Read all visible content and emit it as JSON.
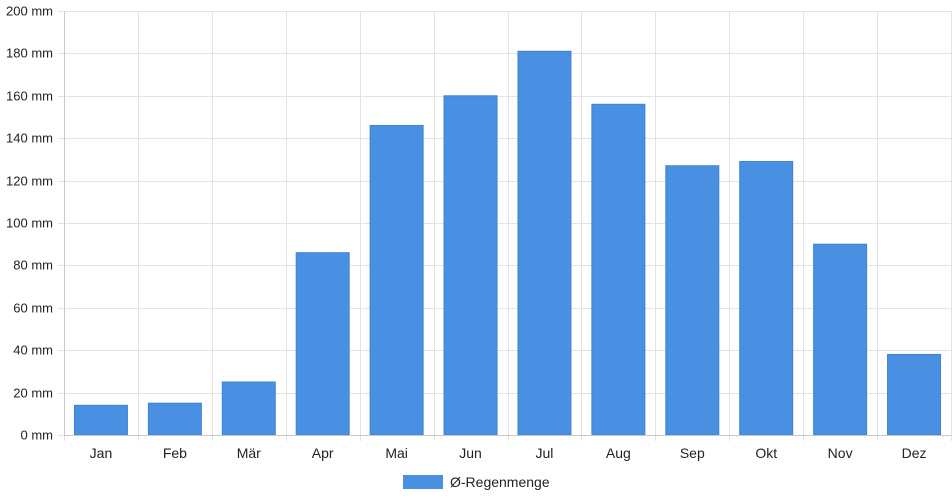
{
  "chart_data": {
    "type": "bar",
    "categories": [
      "Jan",
      "Feb",
      "Mär",
      "Apr",
      "Mai",
      "Jun",
      "Jul",
      "Aug",
      "Sep",
      "Okt",
      "Nov",
      "Dez"
    ],
    "series": [
      {
        "name": "Ø-Regenmenge",
        "color": "#4a90e2",
        "values": [
          14,
          15,
          25,
          86,
          146,
          160,
          181,
          156,
          127,
          129,
          90,
          38
        ]
      }
    ],
    "y_unit": " mm",
    "ylim": [
      0,
      200
    ],
    "y_ticks": [
      0,
      20,
      40,
      60,
      80,
      100,
      120,
      140,
      160,
      180,
      200
    ],
    "grid": true,
    "legend": {
      "placement": "bottom-center"
    }
  }
}
